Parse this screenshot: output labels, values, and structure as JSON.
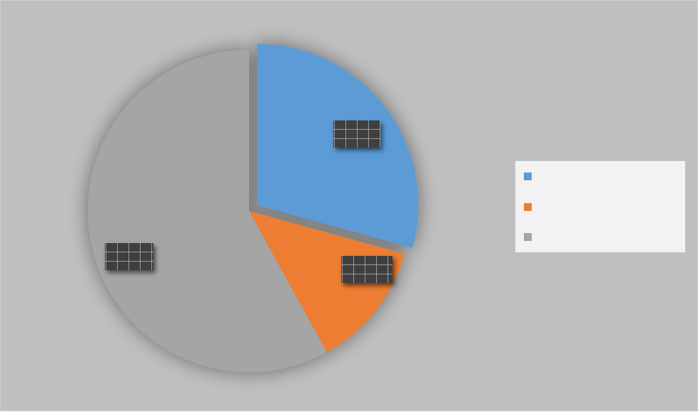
{
  "chart_data": {
    "type": "pie",
    "categories": [
      "",
      "",
      ""
    ],
    "values": [
      29.3,
      12.7,
      58.0
    ],
    "colors": [
      "#5b9bd5",
      "#ed7d31",
      "#a5a5a5"
    ],
    "data_labels_legible": false,
    "legend": {
      "position": "right",
      "entries": [
        "",
        "",
        ""
      ]
    }
  }
}
